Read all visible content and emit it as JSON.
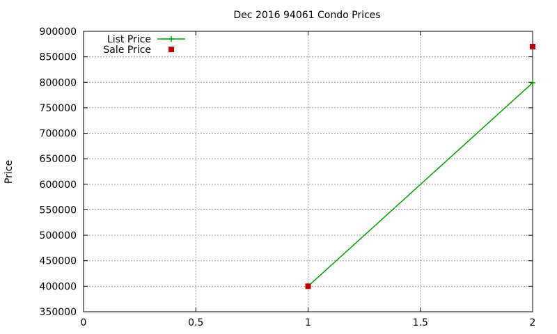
{
  "chart_data": {
    "type": "line",
    "title": "Dec 2016 94061 Condo Prices",
    "xlabel": "",
    "ylabel": "Price",
    "xlim": [
      0,
      2
    ],
    "ylim": [
      350000,
      900000
    ],
    "xticks": [
      0,
      0.5,
      1,
      1.5,
      2
    ],
    "xtick_labels": [
      "0",
      "0.5",
      "1",
      "1.5",
      "2"
    ],
    "yticks": [
      350000,
      400000,
      450000,
      500000,
      550000,
      600000,
      650000,
      700000,
      750000,
      800000,
      850000,
      900000
    ],
    "ytick_labels": [
      "350000",
      "400000",
      "450000",
      "500000",
      "550000",
      "600000",
      "650000",
      "700000",
      "750000",
      "800000",
      "850000",
      "900000"
    ],
    "grid": true,
    "legend_position": "top-left",
    "series": [
      {
        "name": "List Price",
        "style": "line-with-plus-markers",
        "color": "#00a000",
        "x": [
          1,
          2
        ],
        "values": [
          400000,
          799000
        ]
      },
      {
        "name": "Sale Price",
        "style": "square-markers",
        "color": "#c00000",
        "x": [
          1,
          2
        ],
        "values": [
          400000,
          870000
        ]
      }
    ]
  }
}
